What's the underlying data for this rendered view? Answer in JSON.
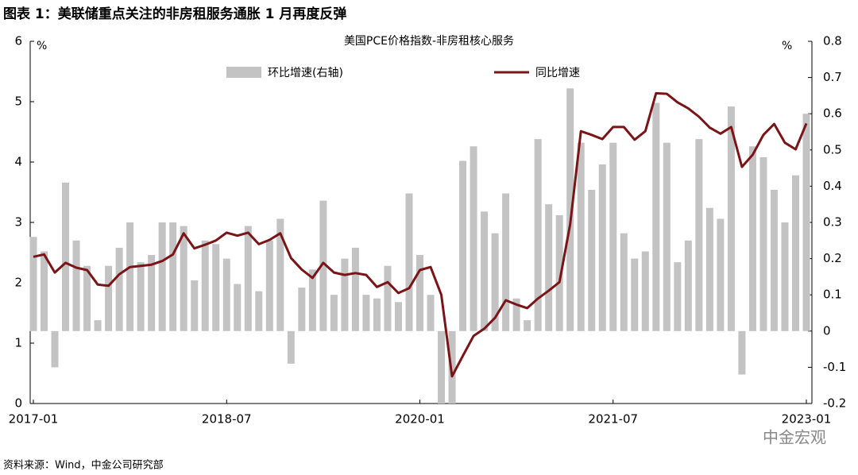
{
  "header": {
    "title": "图表 1：美联储重点关注的非房租服务通胀 1 月再度反弹"
  },
  "chart_data": {
    "type": "bar_line",
    "title": "美国PCE价格指数-非房租核心服务",
    "y_unit": "%",
    "y2_unit": "%",
    "categories": [
      "2017-01",
      null,
      null,
      null,
      null,
      null,
      null,
      null,
      null,
      null,
      null,
      null,
      null,
      null,
      null,
      null,
      null,
      null,
      "2018-07",
      null,
      null,
      null,
      null,
      null,
      null,
      null,
      null,
      null,
      null,
      null,
      null,
      null,
      null,
      null,
      null,
      null,
      "2020-01",
      null,
      null,
      null,
      null,
      null,
      null,
      null,
      null,
      null,
      null,
      null,
      null,
      null,
      null,
      null,
      null,
      null,
      "2021-07",
      null,
      null,
      null,
      null,
      null,
      null,
      null,
      null,
      null,
      null,
      null,
      null,
      null,
      null,
      null,
      null,
      null,
      "2023-01"
    ],
    "ylim": [
      0,
      6
    ],
    "yticks": [
      0,
      1,
      2,
      3,
      4,
      5,
      6
    ],
    "y2lim": [
      -0.2,
      0.8
    ],
    "y2ticks": [
      -0.2,
      -0.1,
      0,
      0.1,
      0.2,
      0.3,
      0.4,
      0.5,
      0.6,
      0.7,
      0.8
    ],
    "legend": "top",
    "series": [
      {
        "name": "环比增速(右轴)",
        "type": "bar",
        "axis": "y2",
        "color": "#c3c3c3",
        "values": [
          0.26,
          0.22,
          -0.1,
          0.41,
          0.25,
          0.18,
          0.03,
          0.18,
          0.23,
          0.3,
          0.19,
          0.21,
          0.3,
          0.3,
          0.29,
          0.14,
          0.25,
          0.24,
          0.2,
          0.13,
          0.29,
          0.11,
          0.25,
          0.31,
          -0.09,
          0.12,
          0.17,
          0.36,
          0.1,
          0.2,
          0.23,
          0.1,
          0.09,
          0.18,
          0.08,
          0.38,
          0.21,
          0.1,
          -0.2,
          -0.2,
          0.47,
          0.51,
          0.33,
          0.27,
          0.38,
          0.09,
          0.03,
          0.53,
          0.35,
          0.32,
          0.67,
          0.52,
          0.39,
          0.46,
          0.52,
          0.27,
          0.2,
          0.22,
          0.63,
          0.52,
          0.19,
          0.25,
          0.53,
          0.34,
          0.31,
          0.62,
          -0.12,
          0.51,
          0.48,
          0.39,
          0.3,
          0.43,
          0.6
        ]
      },
      {
        "name": "同比增速",
        "type": "line",
        "color": "#7a1416",
        "values": [
          2.43,
          2.47,
          2.17,
          2.33,
          2.25,
          2.21,
          1.97,
          1.95,
          2.14,
          2.26,
          2.28,
          2.3,
          2.36,
          2.47,
          2.82,
          2.57,
          2.63,
          2.7,
          2.83,
          2.78,
          2.83,
          2.64,
          2.71,
          2.82,
          2.41,
          2.22,
          2.08,
          2.33,
          2.17,
          2.13,
          2.16,
          2.13,
          1.93,
          2.01,
          1.83,
          1.91,
          2.21,
          2.26,
          1.8,
          0.45,
          0.79,
          1.12,
          1.24,
          1.42,
          1.71,
          1.64,
          1.58,
          1.74,
          1.87,
          2.01,
          2.97,
          4.51,
          4.45,
          4.38,
          4.58,
          4.58,
          4.37,
          4.51,
          5.14,
          5.13,
          4.99,
          4.89,
          4.75,
          4.57,
          4.47,
          4.58,
          3.92,
          4.12,
          4.45,
          4.63,
          4.32,
          4.21,
          4.64
        ]
      }
    ]
  },
  "watermark": "中金宏观",
  "footer": {
    "source": "资料来源：Wind，中金公司研究部"
  }
}
